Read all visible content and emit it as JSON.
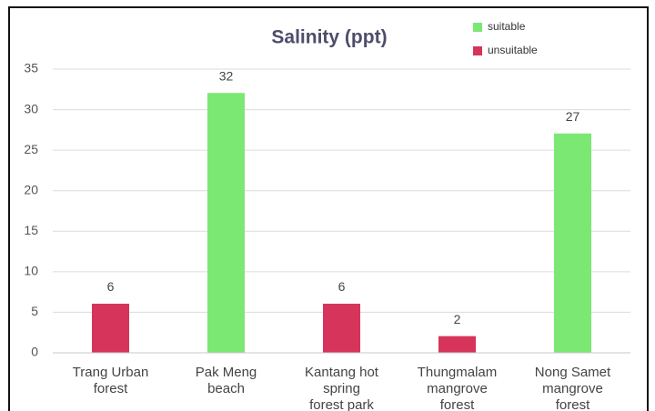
{
  "chart_data": {
    "type": "bar",
    "title": "Salinity (ppt)",
    "categories": [
      "Trang Urban forest",
      "Pak Meng beach",
      "Kantang hot spring forest park",
      "Thungmalam mangrove forest",
      "Nong Samet mangrove forest"
    ],
    "series": [
      {
        "name": "suitable",
        "color": "#7be873",
        "values": [
          null,
          32,
          null,
          null,
          27
        ]
      },
      {
        "name": "unsuitable",
        "color": "#d6345a",
        "values": [
          6,
          null,
          6,
          2,
          null
        ]
      }
    ],
    "ylim": [
      0,
      35
    ],
    "yticks": [
      0,
      5,
      10,
      15,
      20,
      25,
      30,
      35
    ],
    "grid": true,
    "legend": "top-right"
  }
}
